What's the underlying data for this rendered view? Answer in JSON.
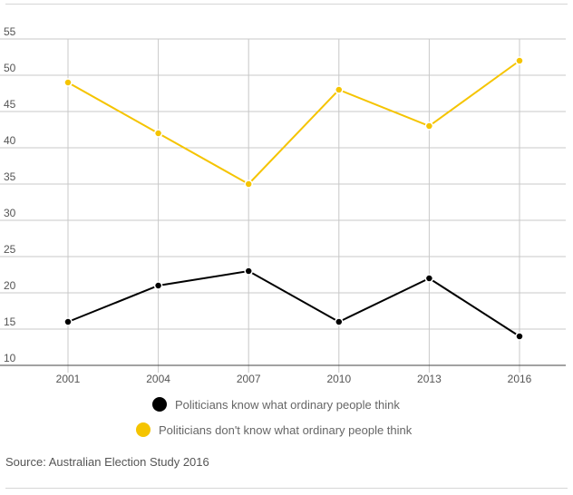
{
  "chart_data": {
    "type": "line",
    "title": "",
    "xlabel": "",
    "ylabel": "",
    "categories": [
      "2001",
      "2004",
      "2007",
      "2010",
      "2013",
      "2016"
    ],
    "ylim": [
      10,
      55
    ],
    "yticks": [
      "55",
      "50",
      "45",
      "40",
      "35",
      "30",
      "25",
      "20",
      "15",
      "10"
    ],
    "grid": true,
    "legend_position": "bottom",
    "series": [
      {
        "name": "Politicians know what ordinary people think",
        "color": "#000000",
        "values": [
          16,
          21,
          23,
          16,
          22,
          14
        ]
      },
      {
        "name": "Politicians don't know what ordinary people think",
        "color": "#f5c400",
        "values": [
          49,
          42,
          35,
          48,
          43,
          52
        ]
      }
    ]
  },
  "source_text": "Source: Australian Election Study 2016"
}
